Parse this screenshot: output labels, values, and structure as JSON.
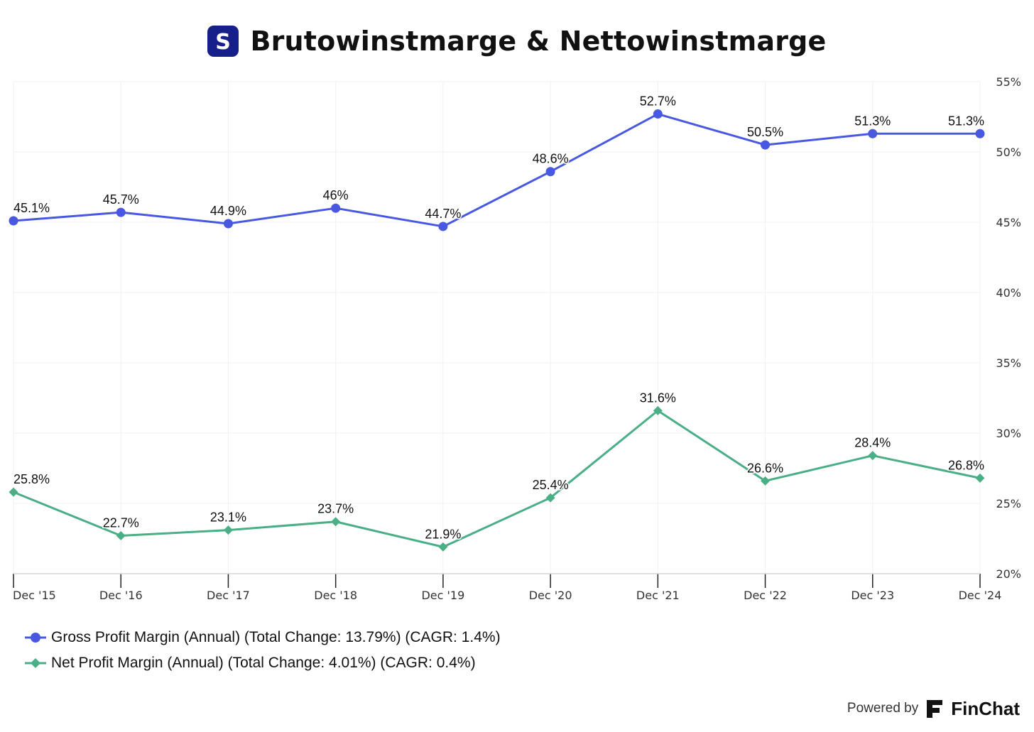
{
  "header": {
    "logo_letter": "S",
    "title": "Brutowinstmarge & Nettowinstmarge"
  },
  "chart_data": {
    "type": "line",
    "title": "Brutowinstmarge & Nettowinstmarge",
    "categories": [
      "Dec '15",
      "Dec '16",
      "Dec '17",
      "Dec '18",
      "Dec '19",
      "Dec '20",
      "Dec '21",
      "Dec '22",
      "Dec '23",
      "Dec '24"
    ],
    "series": [
      {
        "name": "Gross Profit Margin (Annual) (Total Change: 13.79%) (CAGR: 1.4%)",
        "color": "#4858e0",
        "marker": "circle",
        "values": [
          45.1,
          45.7,
          44.9,
          46,
          44.7,
          48.6,
          52.7,
          50.5,
          51.3,
          51.3
        ],
        "labels": [
          "45.1%",
          "45.7%",
          "44.9%",
          "46%",
          "44.7%",
          "48.6%",
          "52.7%",
          "50.5%",
          "51.3%",
          "51.3%"
        ]
      },
      {
        "name": "Net Profit Margin (Annual) (Total Change: 4.01%) (CAGR: 0.4%)",
        "color": "#4aae86",
        "marker": "diamond",
        "values": [
          25.8,
          22.7,
          23.1,
          23.7,
          21.9,
          25.4,
          31.6,
          26.6,
          28.4,
          26.8
        ],
        "labels": [
          "25.8%",
          "22.7%",
          "23.1%",
          "23.7%",
          "21.9%",
          "25.4%",
          "31.6%",
          "26.6%",
          "28.4%",
          "26.8%"
        ]
      }
    ],
    "y_axis": {
      "position": "right",
      "ylim": [
        20,
        55
      ],
      "ticks": [
        20,
        25,
        30,
        35,
        40,
        45,
        50,
        55
      ],
      "tick_labels": [
        "20%",
        "25%",
        "30%",
        "35%",
        "40%",
        "45%",
        "50%",
        "55%"
      ]
    },
    "grid": true,
    "legend_position": "bottom-left"
  },
  "footer": {
    "powered_by": "Powered by",
    "brand": "FinChat"
  }
}
